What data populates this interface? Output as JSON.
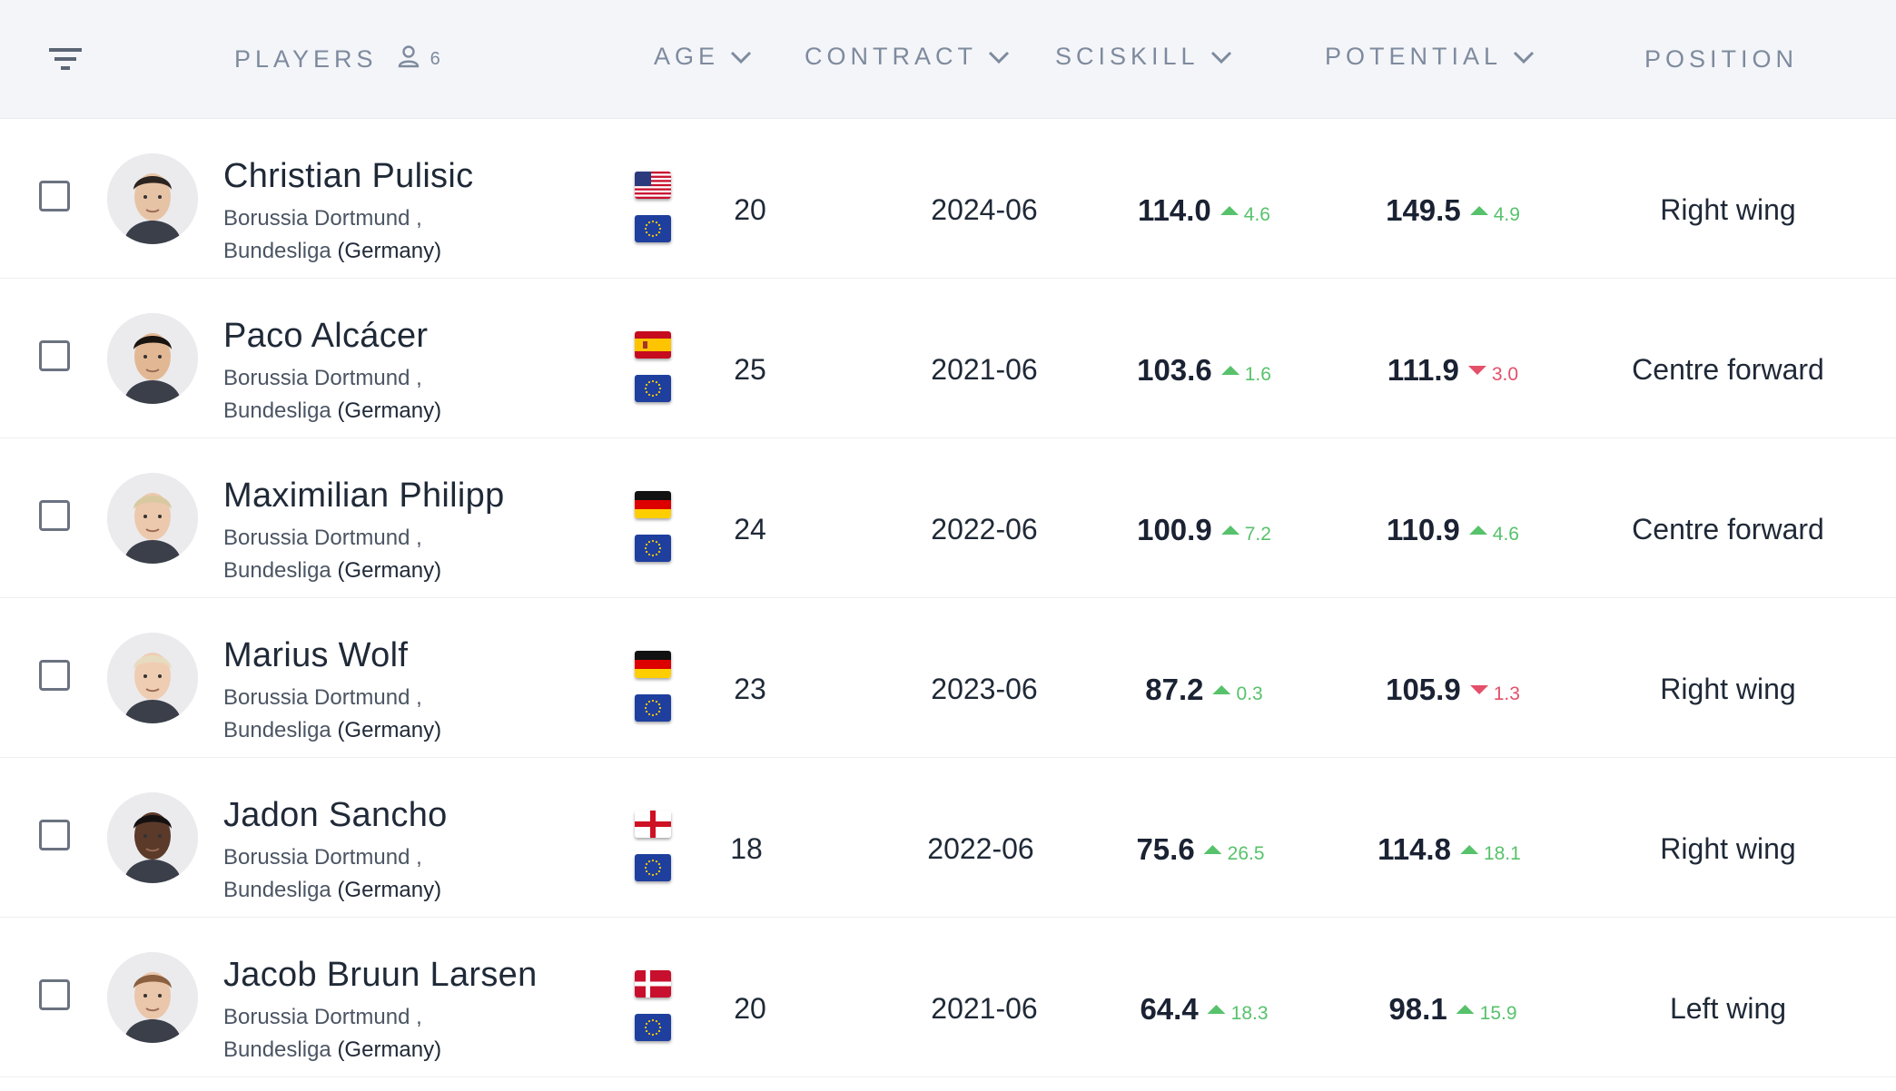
{
  "header": {
    "players_label": "PLAYERS",
    "players_count": "6",
    "age_label": "AGE",
    "contract_label": "CONTRACT",
    "sciskill_label": "SCISKILL",
    "potential_label": "POTENTIAL",
    "position_label": "POSITION"
  },
  "players": [
    {
      "name": "Christian Pulisic",
      "club": "Borussia Dortmund ,",
      "league": "Bundesliga",
      "country": "(Germany)",
      "flags": [
        "usa-flag",
        "eu-flag"
      ],
      "age": "20",
      "contract": "2024-06",
      "sciskill": "114.0",
      "sciskill_delta": "4.6",
      "sciskill_trend": "up",
      "potential": "149.5",
      "potential_delta": "4.9",
      "potential_trend": "up",
      "position": "Right wing"
    },
    {
      "name": "Paco Alcácer",
      "club": "Borussia Dortmund ,",
      "league": "Bundesliga",
      "country": "(Germany)",
      "flags": [
        "spain-flag",
        "eu-flag"
      ],
      "age": "25",
      "contract": "2021-06",
      "sciskill": "103.6",
      "sciskill_delta": "1.6",
      "sciskill_trend": "up",
      "potential": "111.9",
      "potential_delta": "3.0",
      "potential_trend": "down",
      "position": "Centre forward"
    },
    {
      "name": "Maximilian Philipp",
      "club": "Borussia Dortmund ,",
      "league": "Bundesliga",
      "country": "(Germany)",
      "flags": [
        "germany-flag",
        "eu-flag"
      ],
      "age": "24",
      "contract": "2022-06",
      "sciskill": "100.9",
      "sciskill_delta": "7.2",
      "sciskill_trend": "up",
      "potential": "110.9",
      "potential_delta": "4.6",
      "potential_trend": "up",
      "position": "Centre forward"
    },
    {
      "name": "Marius Wolf",
      "club": "Borussia Dortmund ,",
      "league": "Bundesliga",
      "country": "(Germany)",
      "flags": [
        "germany-flag",
        "eu-flag"
      ],
      "age": "23",
      "contract": "2023-06",
      "sciskill": "87.2",
      "sciskill_delta": "0.3",
      "sciskill_trend": "up",
      "potential": "105.9",
      "potential_delta": "1.3",
      "potential_trend": "down",
      "position": "Right wing"
    },
    {
      "name": "Jadon Sancho",
      "club": "Borussia Dortmund ,",
      "league": "Bundesliga",
      "country": "(Germany)",
      "flags": [
        "england-flag",
        "eu-flag"
      ],
      "age": "18",
      "contract": "2022-06",
      "sciskill": "75.6",
      "sciskill_delta": "26.5",
      "sciskill_trend": "up",
      "potential": "114.8",
      "potential_delta": "18.1",
      "potential_trend": "up",
      "position": "Right wing"
    },
    {
      "name": "Jacob Bruun Larsen",
      "club": "Borussia Dortmund ,",
      "league": "Bundesliga",
      "country": "(Germany)",
      "flags": [
        "denmark-flag",
        "eu-flag"
      ],
      "age": "20",
      "contract": "2021-06",
      "sciskill": "64.4",
      "sciskill_delta": "18.3",
      "sciskill_trend": "up",
      "potential": "98.1",
      "potential_delta": "15.9",
      "potential_trend": "up",
      "position": "Left wing"
    }
  ],
  "colors": {
    "header_bg": "#f3f5f8",
    "header_text": "#7e8a9e",
    "trend_up": "#57c26b",
    "trend_down": "#e4506a",
    "eu_blue": "#1f3f9e"
  }
}
